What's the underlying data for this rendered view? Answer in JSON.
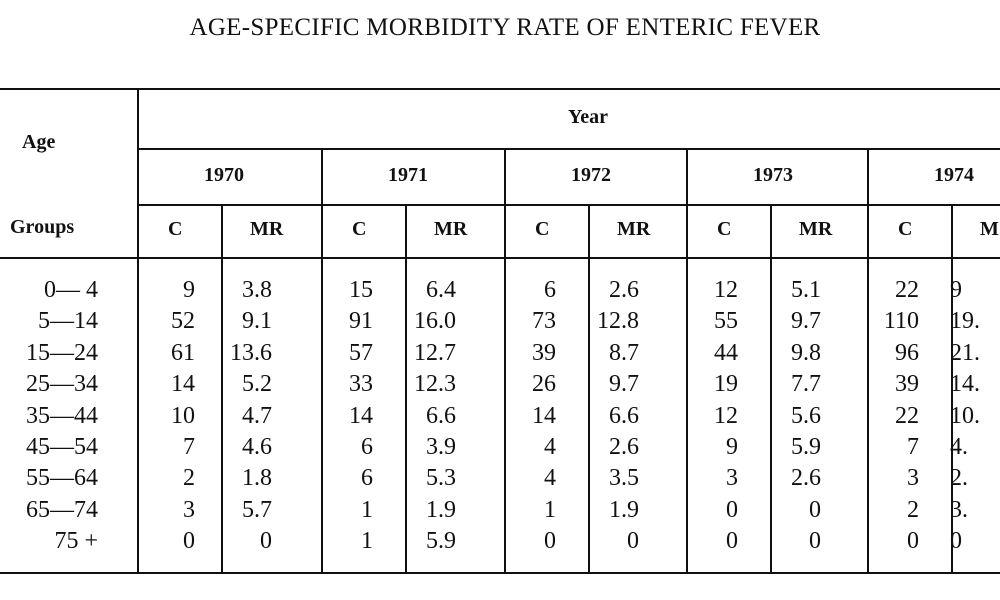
{
  "title": "AGE-SPECIFIC MORBIDITY RATE OF ENTERIC FEVER",
  "table": {
    "age_header_line1": "Age",
    "age_header_line2": "Groups",
    "year_header": "Year",
    "years": [
      "1970",
      "1971",
      "1972",
      "1973",
      "1974"
    ],
    "sub_headers": [
      "C",
      "MR"
    ],
    "sub_headers_last_visible": [
      "C",
      "M"
    ],
    "rows": [
      {
        "age": "0— 4",
        "values": [
          [
            "9",
            "3.8"
          ],
          [
            "15",
            "6.4"
          ],
          [
            "6",
            "2.6"
          ],
          [
            "12",
            "5.1"
          ],
          [
            "22",
            "9"
          ]
        ]
      },
      {
        "age": "5—14",
        "values": [
          [
            "52",
            "9.1"
          ],
          [
            "91",
            "16.0"
          ],
          [
            "73",
            "12.8"
          ],
          [
            "55",
            "9.7"
          ],
          [
            "110",
            "19."
          ]
        ]
      },
      {
        "age": "15—24",
        "values": [
          [
            "61",
            "13.6"
          ],
          [
            "57",
            "12.7"
          ],
          [
            "39",
            "8.7"
          ],
          [
            "44",
            "9.8"
          ],
          [
            "96",
            "21."
          ]
        ]
      },
      {
        "age": "25—34",
        "values": [
          [
            "14",
            "5.2"
          ],
          [
            "33",
            "12.3"
          ],
          [
            "26",
            "9.7"
          ],
          [
            "19",
            "7.7"
          ],
          [
            "39",
            "14."
          ]
        ]
      },
      {
        "age": "35—44",
        "values": [
          [
            "10",
            "4.7"
          ],
          [
            "14",
            "6.6"
          ],
          [
            "14",
            "6.6"
          ],
          [
            "12",
            "5.6"
          ],
          [
            "22",
            "10."
          ]
        ]
      },
      {
        "age": "45—54",
        "values": [
          [
            "7",
            "4.6"
          ],
          [
            "6",
            "3.9"
          ],
          [
            "4",
            "2.6"
          ],
          [
            "9",
            "5.9"
          ],
          [
            "7",
            "4."
          ]
        ]
      },
      {
        "age": "55—64",
        "values": [
          [
            "2",
            "1.8"
          ],
          [
            "6",
            "5.3"
          ],
          [
            "4",
            "3.5"
          ],
          [
            "3",
            "2.6"
          ],
          [
            "3",
            "2."
          ]
        ]
      },
      {
        "age": "65—74",
        "values": [
          [
            "3",
            "5.7"
          ],
          [
            "1",
            "1.9"
          ],
          [
            "1",
            "1.9"
          ],
          [
            "0",
            "0"
          ],
          [
            "2",
            "3."
          ]
        ]
      },
      {
        "age": "75 +",
        "values": [
          [
            "0",
            "0"
          ],
          [
            "1",
            "5.9"
          ],
          [
            "0",
            "0"
          ],
          [
            "0",
            "0"
          ],
          [
            "0",
            "0"
          ]
        ]
      }
    ]
  }
}
